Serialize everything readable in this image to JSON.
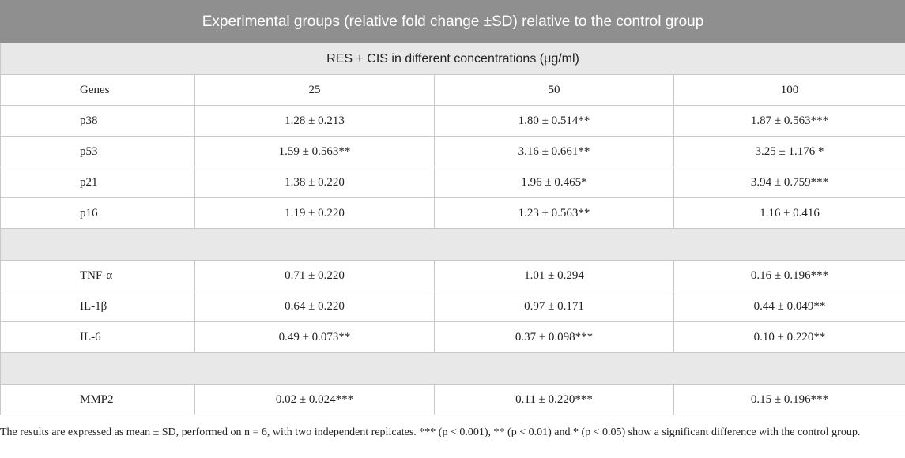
{
  "title": "Experimental groups (relative fold change ±SD) relative to the control group",
  "subtitle": "RES + CIS in different concentrations (μg/ml)",
  "header": [
    "Genes",
    "25",
    "50",
    "100"
  ],
  "sections": [
    {
      "rows": [
        {
          "gene": "p38",
          "values": [
            "1.28 ± 0.213",
            "1.80 ± 0.514**",
            "1.87 ± 0.563***"
          ]
        },
        {
          "gene": "p53",
          "values": [
            "1.59 ± 0.563**",
            "3.16 ± 0.661**",
            "3.25 ± 1.176 *"
          ]
        },
        {
          "gene": "p21",
          "values": [
            "1.38 ± 0.220",
            "1.96 ± 0.465*",
            "3.94 ± 0.759***"
          ]
        },
        {
          "gene": "p16",
          "values": [
            "1.19 ± 0.220",
            "1.23 ± 0.563**",
            "1.16 ± 0.416"
          ]
        }
      ]
    },
    {
      "rows": [
        {
          "gene": "TNF-α",
          "values": [
            "0.71 ± 0.220",
            "1.01 ± 0.294",
            "0.16 ± 0.196***"
          ]
        },
        {
          "gene": "IL-1β",
          "values": [
            "0.64 ± 0.220",
            "0.97 ± 0.171",
            "0.44 ± 0.049**"
          ]
        },
        {
          "gene": "IL-6",
          "values": [
            "0.49 ± 0.073**",
            "0.37 ± 0.098***",
            "0.10 ± 0.220**"
          ]
        }
      ]
    },
    {
      "rows": [
        {
          "gene": "MMP2",
          "values": [
            "0.02 ± 0.024***",
            "0.11 ± 0.220***",
            "0.15 ± 0.196***"
          ]
        }
      ]
    }
  ],
  "footnote": "The results are expressed as mean ± SD, performed on n = 6, with two independent replicates. *** (p < 0.001), ** (p < 0.01) and * (p < 0.05) show a significant difference with the control group."
}
